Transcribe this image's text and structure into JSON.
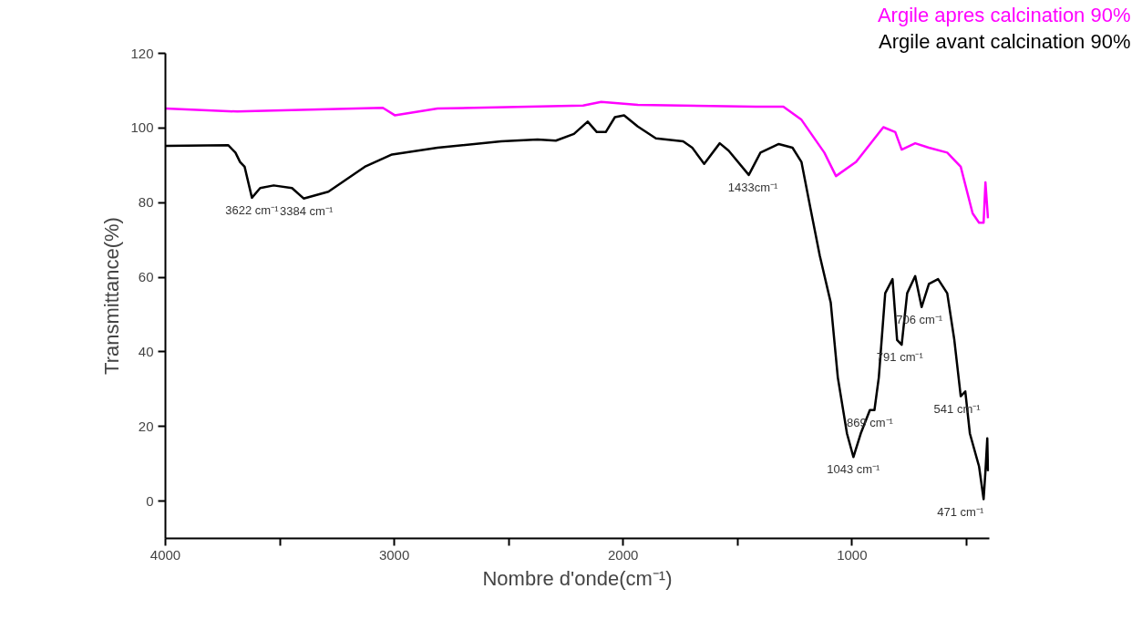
{
  "chart_data": {
    "type": "line",
    "xlabel": "Nombre d'onde(cm⁻¹)",
    "ylabel": "Transmittance(%)",
    "xlim": [
      4000,
      400
    ],
    "ylim": [
      -10,
      120
    ],
    "xticks": [
      4000,
      {
        "value": 3500,
        "label": null
      },
      3000,
      {
        "value": 2500,
        "label": null
      },
      2000,
      {
        "value": 1500,
        "label": null
      },
      1000,
      {
        "value": 500,
        "label": null
      }
    ],
    "yticks": [
      0,
      20,
      40,
      60,
      80,
      100,
      120
    ],
    "grid": false,
    "line_style": "solid",
    "marker": "none",
    "series": [
      {
        "name": "Argile apres calcination 90%",
        "color": "#ff00ff",
        "x": [
          4000,
          3686,
          3050,
          2998,
          2811,
          2175,
          2096,
          1936,
          1420,
          1300,
          1221,
          1121,
          1070,
          982,
          863,
          811,
          783,
          724,
          664,
          584,
          525,
          473,
          445,
          425,
          417,
          406
        ],
        "values": [
          105.2,
          104.4,
          105.4,
          103.4,
          105.2,
          106,
          107,
          106.2,
          105.7,
          105.7,
          102.2,
          93.4,
          87.1,
          90.9,
          100.2,
          98.9,
          94.2,
          95.9,
          94.7,
          93.4,
          89.6,
          77.1,
          74.6,
          74.6,
          85.4,
          75.8
        ]
      },
      {
        "name": "Argile avant calcination 90%",
        "color": "#000000",
        "x": [
          4000,
          3726,
          3694,
          3674,
          3654,
          3622,
          3586,
          3527,
          3447,
          3396,
          3288,
          3129,
          3010,
          2811,
          2533,
          2374,
          2294,
          2215,
          2155,
          2115,
          2076,
          2036,
          1996,
          1936,
          1857,
          1738,
          1698,
          1646,
          1578,
          1539,
          1451,
          1400,
          1320,
          1260,
          1221,
          1181,
          1141,
          1093,
          1062,
          1022,
          994,
          962,
          922,
          902,
          883,
          855,
          823,
          803,
          783,
          759,
          724,
          696,
          664,
          624,
          584,
          553,
          525,
          505,
          485,
          445,
          425,
          417,
          409,
          406
        ],
        "values": [
          95.2,
          95.4,
          93.4,
          90.9,
          89.6,
          81.3,
          83.9,
          84.6,
          83.9,
          81.1,
          82.9,
          89.6,
          92.9,
          94.7,
          96.4,
          96.9,
          96.6,
          98.4,
          101.7,
          98.9,
          98.9,
          102.9,
          103.4,
          100.4,
          97.2,
          96.4,
          94.7,
          90.4,
          95.9,
          93.9,
          87.4,
          93.4,
          95.7,
          94.7,
          90.9,
          78.3,
          65.8,
          53.2,
          33.1,
          18.1,
          11.8,
          18.1,
          24.4,
          24.4,
          33.1,
          55.7,
          59.5,
          43.2,
          41.9,
          55.7,
          60.3,
          52.0,
          58.2,
          59.5,
          55.7,
          43.2,
          28.1,
          29.4,
          18.1,
          9.3,
          0.5,
          8.0,
          16.8,
          8.0
        ]
      }
    ],
    "annotations": [
      {
        "text": "3622 cm⁻¹",
        "x": 3622,
        "y": 81.3
      },
      {
        "text": "3384 cm⁻¹",
        "x": 3384,
        "y": 81.1
      },
      {
        "text": "1433cm⁻¹",
        "x": 1433,
        "y": 87.4
      },
      {
        "text": "1043 cm⁻¹",
        "x": 994,
        "y": 11.8
      },
      {
        "text": "869 cm⁻¹",
        "x": 922,
        "y": 24.4
      },
      {
        "text": "791 cm⁻¹",
        "x": 791,
        "y": 41.9
      },
      {
        "text": "706 cm⁻¹",
        "x": 706,
        "y": 52.0
      },
      {
        "text": "541 cm⁻¹",
        "x": 541,
        "y": 28.1
      },
      {
        "text": "471 cm⁻¹",
        "x": 425,
        "y": 0.5
      }
    ]
  }
}
